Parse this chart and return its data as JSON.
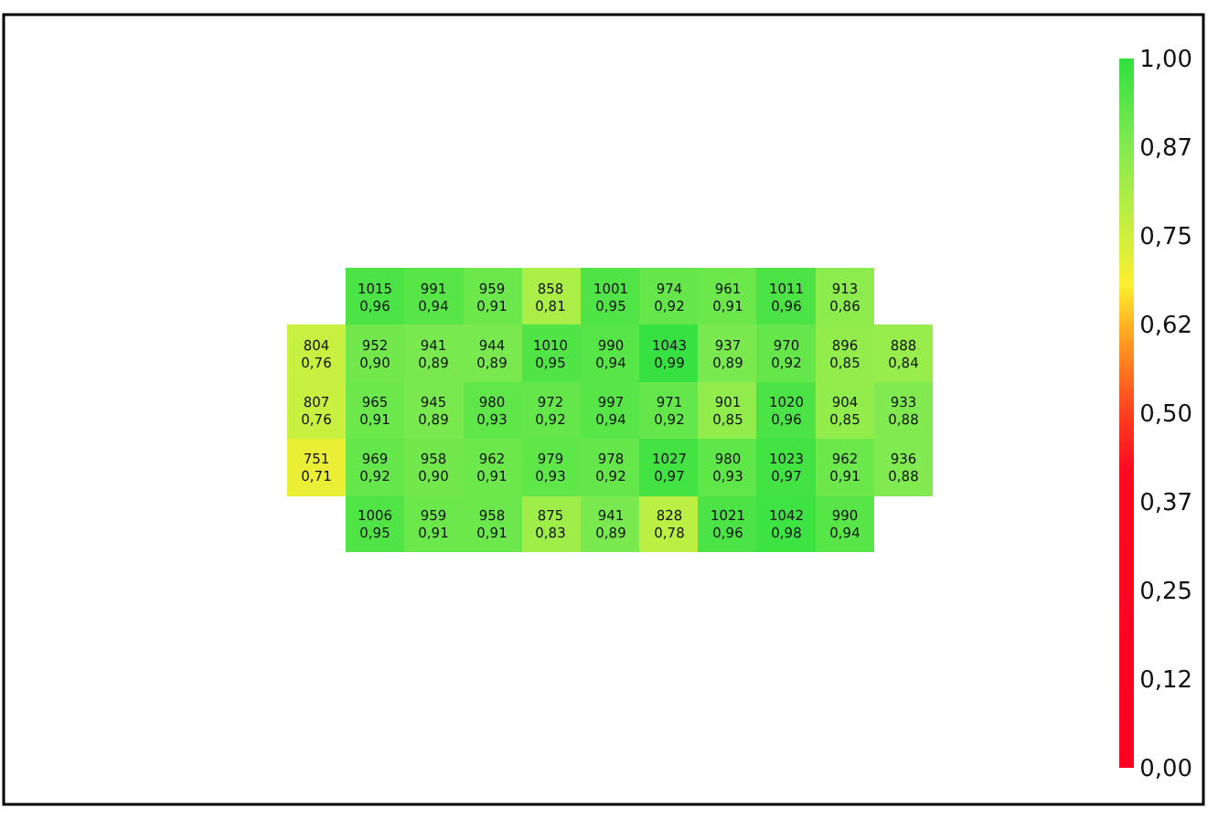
{
  "chart_data": {
    "type": "heatmap",
    "categories": [
      null,
      null,
      null,
      null,
      null,
      null,
      null,
      null,
      null,
      null,
      null
    ],
    "y_categories": [
      null,
      null,
      null,
      null,
      null
    ],
    "cells": [
      [
        null,
        0.96,
        0.94,
        0.91,
        0.81,
        0.95,
        0.92,
        0.91,
        0.96,
        0.86,
        null
      ],
      [
        0.76,
        0.9,
        0.89,
        0.89,
        0.95,
        0.94,
        0.99,
        0.89,
        0.92,
        0.85,
        0.84
      ],
      [
        0.76,
        0.91,
        0.89,
        0.93,
        0.92,
        0.94,
        0.92,
        0.85,
        0.96,
        0.85,
        0.88
      ],
      [
        0.71,
        0.92,
        0.9,
        0.91,
        0.93,
        0.92,
        0.97,
        0.93,
        0.97,
        0.91,
        0.88
      ],
      [
        null,
        0.95,
        0.91,
        0.91,
        0.83,
        0.89,
        0.78,
        0.96,
        0.98,
        0.94,
        null
      ]
    ],
    "cell_labels": [
      [
        null,
        "1015\n0,96",
        "991\n0,94",
        "959\n0,91",
        "858\n0,81",
        "1001\n0,95",
        "974\n0,92",
        "961\n0,91",
        "1011\n0,96",
        "913\n0,86",
        null
      ],
      [
        "804\n0,76",
        "952\n0,90",
        "941\n0,89",
        "944\n0,89",
        "1010\n0,95",
        "990\n0,94",
        "1043\n0,99",
        "937\n0,89",
        "970\n0,92",
        "896\n0,85",
        "888\n0,84"
      ],
      [
        "807\n0,76",
        "965\n0,91",
        "945\n0,89",
        "980\n0,93",
        "972\n0,92",
        "997\n0,94",
        "971\n0,92",
        "901\n0,85",
        "1020\n0,96",
        "904\n0,85",
        "933\n0,88"
      ],
      [
        "751\n0,71",
        "969\n0,92",
        "958\n0,90",
        "962\n0,91",
        "979\n0,93",
        "978\n0,92",
        "1027\n0,97",
        "980\n0,93",
        "1023\n0,97",
        "962\n0,91",
        "936\n0,88"
      ],
      [
        null,
        "1006\n0,95",
        "959\n0,91",
        "958\n0,91",
        "875\n0,83",
        "941\n0,89",
        "828\n0,78",
        "1021\n0,96",
        "1042\n0,98",
        "990\n0,94",
        null
      ]
    ],
    "clim": [
      0,
      1
    ],
    "cticks": [
      {
        "value": 0,
        "label": "0,00"
      },
      {
        "value": 0.125,
        "label": "0,12"
      },
      {
        "value": 0.25,
        "label": "0,25"
      },
      {
        "value": 0.375,
        "label": "0,37"
      },
      {
        "value": 0.5,
        "label": "0,50"
      },
      {
        "value": 0.625,
        "label": "0,62"
      },
      {
        "value": 0.75,
        "label": "0,75"
      },
      {
        "value": 0.875,
        "label": "0,87"
      },
      {
        "value": 1,
        "label": "1,00"
      }
    ]
  }
}
